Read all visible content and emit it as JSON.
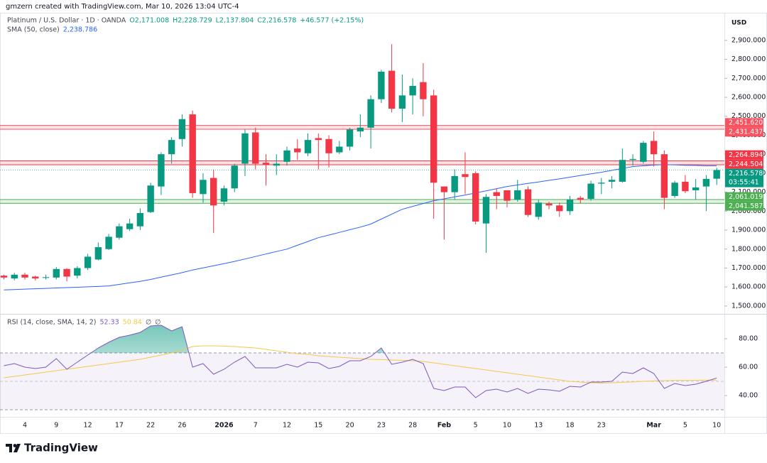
{
  "chart_data": [
    {
      "type": "candlestick",
      "credit": "gmzern created with TradingView.com, Mar 10, 2026 13:04 UTC-4",
      "title": "Platinum / U.S. Dollar · 1D · OANDA",
      "ohlc_labels": [
        "O2,171.008",
        "H2,228.729",
        "L2,137.804",
        "C2,216.578"
      ],
      "change_label": "+46.577 (+2.15%)",
      "currency": "USD",
      "brand": "TradingView",
      "up_color": "#089981",
      "down_color": "#f23645",
      "categories": [
        null,
        null,
        "4",
        null,
        null,
        "9",
        null,
        null,
        "12",
        null,
        null,
        "17",
        null,
        null,
        "22",
        null,
        null,
        "26",
        null,
        null,
        null,
        "2026",
        null,
        null,
        "7",
        null,
        null,
        "12",
        null,
        null,
        "15",
        null,
        null,
        "20",
        null,
        null,
        "23",
        null,
        null,
        "28",
        null,
        null,
        "Feb",
        null,
        null,
        "5",
        null,
        null,
        "10",
        null,
        null,
        "13",
        null,
        null,
        "18",
        null,
        null,
        "23",
        null,
        null,
        null,
        null,
        "Mar",
        null,
        null,
        "5",
        null,
        null,
        "10"
      ],
      "open": [
        1660,
        1645,
        1665,
        1655,
        1648,
        1650,
        1695,
        1660,
        1700,
        1745,
        1800,
        1860,
        1905,
        1920,
        1995,
        2130,
        2300,
        2380,
        2510,
        2090,
        2175,
        2050,
        2120,
        2250,
        2415,
        2255,
        2240,
        2260,
        2330,
        2305,
        2385,
        2380,
        2310,
        2340,
        2420,
        2440,
        2590,
        2740,
        2540,
        2610,
        2680,
        2610,
        2130,
        2100,
        2195,
        2200,
        1935,
        2100,
        2110,
        2060,
        2115,
        1970,
        2040,
        2030,
        2000,
        2070,
        2065,
        2145,
        2155,
        2155,
        2270,
        2260,
        2370,
        2300,
        2080,
        2155,
        2110,
        2130,
        2171.008
      ],
      "high": [
        1665,
        1675,
        1675,
        1660,
        1665,
        1705,
        1700,
        1710,
        1775,
        1835,
        1880,
        1935,
        1960,
        2015,
        2150,
        2310,
        2390,
        2510,
        2530,
        2200,
        2220,
        2135,
        2250,
        2430,
        2440,
        2300,
        2300,
        2340,
        2380,
        2410,
        2410,
        2400,
        2370,
        2440,
        2510,
        2610,
        2745,
        2880,
        2720,
        2700,
        2780,
        2640,
        2130,
        2220,
        2310,
        2210,
        2090,
        2120,
        2110,
        2165,
        2130,
        2060,
        2050,
        2045,
        2080,
        2080,
        2160,
        2175,
        2185,
        2330,
        2300,
        2370,
        2420,
        2320,
        2160,
        2190,
        2170,
        2190,
        2228.729
      ],
      "low": [
        1640,
        1635,
        1640,
        1635,
        1640,
        1640,
        1630,
        1645,
        1690,
        1740,
        1795,
        1850,
        1895,
        1900,
        1990,
        2085,
        2250,
        2340,
        2070,
        2045,
        1885,
        2030,
        2100,
        2185,
        2220,
        2135,
        2190,
        2240,
        2270,
        2290,
        2220,
        2230,
        2300,
        2320,
        2390,
        2330,
        2570,
        2520,
        2470,
        2510,
        2500,
        1960,
        1850,
        2060,
        2090,
        1930,
        1780,
        2010,
        2020,
        2050,
        1970,
        1955,
        2010,
        1970,
        1980,
        2040,
        2055,
        2090,
        2120,
        2150,
        2240,
        2250,
        2235,
        2010,
        2070,
        2095,
        2060,
        2000,
        2137.804
      ],
      "close": [
        1650,
        1665,
        1650,
        1645,
        1652,
        1695,
        1655,
        1700,
        1760,
        1810,
        1865,
        1920,
        1935,
        1990,
        2135,
        2300,
        2375,
        2485,
        2095,
        2165,
        2030,
        2120,
        2240,
        2410,
        2250,
        2245,
        2250,
        2320,
        2310,
        2375,
        2375,
        2305,
        2340,
        2430,
        2440,
        2590,
        2735,
        2540,
        2610,
        2660,
        2590,
        2150,
        2100,
        2185,
        2180,
        1945,
        2075,
        2080,
        2055,
        2110,
        1980,
        2045,
        2030,
        2000,
        2060,
        2060,
        2145,
        2150,
        2165,
        2270,
        2275,
        2360,
        2300,
        2070,
        2150,
        2105,
        2125,
        2170,
        2216.578
      ],
      "close_label": "2,216.578",
      "countdown": "03:55:41",
      "overlays": [
        {
          "title": "SMA (50, close)",
          "value_label": "2,238.786",
          "color": "#2962ff",
          "values": [
            1585,
            1587,
            1589,
            1591,
            1593,
            1595,
            1597,
            1599,
            1601,
            1603,
            1606,
            1614,
            1622,
            1630,
            1640,
            1652,
            1664,
            1676,
            1690,
            1701,
            1712,
            1723,
            1735,
            1748,
            1761,
            1774,
            1787,
            1800,
            1820,
            1840,
            1860,
            1874,
            1888,
            1902,
            1916,
            1932,
            1958,
            1984,
            2010,
            2025,
            2040,
            2055,
            2065,
            2075,
            2085,
            2096,
            2107,
            2118,
            2130,
            2138,
            2146,
            2154,
            2162,
            2170,
            2179,
            2188,
            2197,
            2205,
            2215,
            2225,
            2235,
            2239,
            2243,
            2245,
            2244,
            2242,
            2241,
            2239,
            2238.786
          ]
        }
      ],
      "levels": [
        {
          "value": 2451.62,
          "label": "2,451.620",
          "color": "#f7525f"
        },
        {
          "value": 2431.437,
          "label": "2,431.437",
          "color": "#f7525f"
        },
        {
          "value": 2264.894,
          "label": "2,264.894",
          "color": "#f23645"
        },
        {
          "value": 2244.504,
          "label": "2,244.504",
          "color": "#f23645"
        },
        {
          "value": 2061.019,
          "label": "2,061.019",
          "color": "#4caf50"
        },
        {
          "value": 2041.587,
          "label": "2,041.587",
          "color": "#4caf50"
        }
      ],
      "ylim": [
        1466,
        3038
      ],
      "yticks": [
        {
          "value": 1500,
          "label": "1,500.000"
        },
        {
          "value": 1600,
          "label": "1,600.000"
        },
        {
          "value": 1700,
          "label": "1,700.000"
        },
        {
          "value": 1800,
          "label": "1,800.000"
        },
        {
          "value": 1900,
          "label": "1,900.000"
        },
        {
          "value": 2000,
          "label": "2,000.000"
        },
        {
          "value": 2100,
          "label": "2,100.000"
        },
        {
          "value": 2200,
          "label": "2,200.000"
        },
        {
          "value": 2300,
          "label": "2,300.000"
        },
        {
          "value": 2400,
          "label": "2,400.000"
        },
        {
          "value": 2500,
          "label": "2,500.000"
        },
        {
          "value": 2600,
          "label": "2,600.000"
        },
        {
          "value": 2700,
          "label": "2,700.000"
        },
        {
          "value": 2800,
          "label": "2,800.000"
        },
        {
          "value": 2900,
          "label": "2,900.000"
        }
      ]
    },
    {
      "type": "line",
      "title": "RSI (14, close, SMA, 14, 2)",
      "extra_labels": [
        "∅",
        "∅"
      ],
      "series": [
        {
          "color": "#7e57c2",
          "value_label": "52.33",
          "values": [
            61,
            62.5,
            60,
            59,
            60,
            66,
            58.5,
            63.5,
            68.5,
            73.5,
            77.5,
            81,
            82.5,
            84.5,
            89,
            89.5,
            85.5,
            88.5,
            60,
            62.5,
            55,
            58.5,
            63.5,
            67.5,
            59.5,
            59.5,
            59.5,
            62,
            60,
            63.5,
            63,
            59,
            60.5,
            64.5,
            64.5,
            67.5,
            73.5,
            62,
            63.5,
            65.5,
            62.5,
            45,
            43.5,
            46,
            46,
            38.5,
            43.5,
            44.5,
            42.5,
            45,
            41.5,
            44.5,
            44,
            43,
            46.5,
            46,
            49.5,
            49.5,
            50,
            56.5,
            55.5,
            59.5,
            55.5,
            45,
            48.5,
            47,
            48,
            50,
            52.33
          ]
        },
        {
          "color": "#f2c94c",
          "value_label": "50.84",
          "values": [
            52.5,
            53.5,
            54.5,
            55.5,
            56.5,
            57.5,
            58.5,
            59.5,
            60.5,
            61.5,
            62.5,
            63.5,
            64.5,
            65.5,
            67,
            68.5,
            70,
            72,
            74.5,
            75,
            75,
            74.8,
            74.5,
            74,
            73.5,
            72.5,
            71.5,
            70.5,
            69.5,
            69,
            68,
            67.5,
            67,
            66.5,
            66,
            65.5,
            65.3,
            65,
            64.8,
            64.5,
            64,
            63,
            62,
            61,
            60,
            59,
            58,
            57,
            56,
            55,
            54,
            53,
            52,
            51,
            50,
            49.5,
            49,
            48.8,
            49,
            49.3,
            49.6,
            50,
            50.3,
            50.5,
            50.6,
            50.7,
            50.75,
            50.8,
            50.84
          ]
        }
      ],
      "band": [
        30,
        70
      ],
      "midline": 50,
      "ylim": [
        26,
        96
      ],
      "yticks": [
        {
          "value": 40,
          "label": "40.00"
        },
        {
          "value": 60,
          "label": "60.00"
        },
        {
          "value": 80,
          "label": "80.00"
        }
      ]
    }
  ]
}
